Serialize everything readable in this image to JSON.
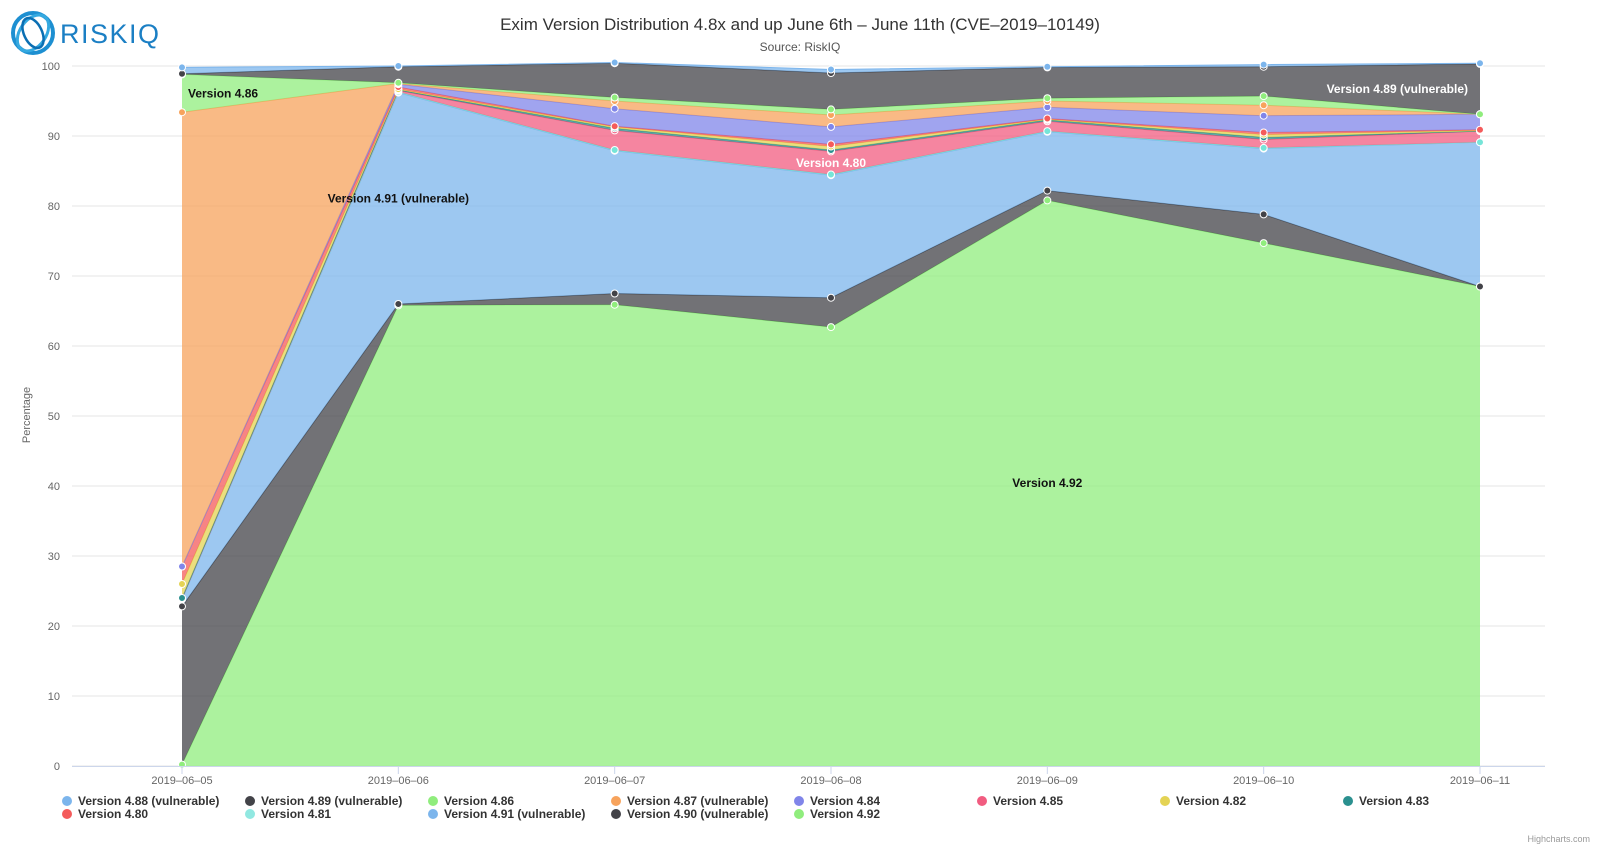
{
  "logo": {
    "text": "RISKIQ"
  },
  "chart_data": {
    "type": "area",
    "stacking": "normal",
    "title": "Exim Version Distribution 4.8x and up June 6th – June 11th (CVE–2019–10149)",
    "subtitle": "Source: RiskIQ",
    "ylabel": "Percentage",
    "xlabel": "",
    "ylim": [
      0,
      100
    ],
    "yticks": [
      0,
      10,
      20,
      30,
      40,
      50,
      60,
      70,
      80,
      90,
      100
    ],
    "grid": true,
    "legend_position": "bottom",
    "categories": [
      "2019–06–05",
      "2019–06–06",
      "2019–06–07",
      "2019–06–08",
      "2019–06–09",
      "2019–06–10",
      "2019–06–11"
    ],
    "series": [
      {
        "name": "Version 4.92",
        "color": "#90ed7d",
        "values": [
          0.2,
          65.8,
          65.9,
          62.7,
          80.8,
          74.7,
          68.5
        ]
      },
      {
        "name": "Version 4.90 (vulnerable)",
        "color": "#434348",
        "values": [
          22.6,
          0.2,
          1.6,
          4.2,
          1.4,
          4.1,
          0.0
        ]
      },
      {
        "name": "Version 4.91 (vulnerable)",
        "color": "#7cb5ec",
        "values": [
          1.0,
          30.2,
          20.4,
          17.5,
          8.4,
          9.4,
          20.6
        ]
      },
      {
        "name": "Version 4.81",
        "color": "#76e5d8",
        "values": [
          0.1,
          0.1,
          0.1,
          0.1,
          0.1,
          0.1,
          0.0
        ]
      },
      {
        "name": "Version 4.80",
        "color": "#f15c80",
        "values": [
          0.0,
          0.2,
          2.8,
          3.3,
          1.4,
          1.2,
          1.6
        ]
      },
      {
        "name": "Version 4.83",
        "color": "#2b908f",
        "values": [
          0.1,
          0.1,
          0.3,
          0.2,
          0.2,
          0.3,
          0.0
        ]
      },
      {
        "name": "Version 4.82",
        "color": "#e4d354",
        "values": [
          2.0,
          0.1,
          0.2,
          0.5,
          0.1,
          0.4,
          0.1
        ]
      },
      {
        "name": "Version 4.85",
        "color": "#f45b5b",
        "values": [
          2.5,
          0.3,
          0.1,
          0.3,
          0.1,
          0.3,
          0.1
        ]
      },
      {
        "name": "Version 4.84",
        "color": "#8085e9",
        "values": [
          0.0,
          0.4,
          2.5,
          2.5,
          1.6,
          2.4,
          2.2
        ]
      },
      {
        "name": "Version 4.87 (vulnerable)",
        "color": "#f7a35c",
        "values": [
          64.9,
          0.1,
          1.1,
          1.7,
          0.9,
          1.5,
          0.0
        ]
      },
      {
        "name": "Version 4.86",
        "color": "#90ed7d",
        "values": [
          5.4,
          0.1,
          0.5,
          0.8,
          0.4,
          1.3,
          0.0
        ]
      },
      {
        "name": "Version 4.89 (vulnerable)",
        "color": "#434348",
        "values": [
          0.1,
          2.3,
          4.9,
          5.2,
          4.4,
          4.2,
          7.2
        ]
      },
      {
        "name": "Version 4.88 (vulnerable)",
        "color": "#7cb5ec",
        "values": [
          0.9,
          0.1,
          0.1,
          0.5,
          0.1,
          0.3,
          0.1
        ]
      }
    ],
    "annotations": [
      {
        "text": "Version 4.86",
        "series": "Version 4.86",
        "point": 0,
        "align": "left",
        "color": "#111111"
      },
      {
        "text": "Version 4.91 (vulnerable)",
        "series": "Version 4.91 (vulnerable)",
        "point": 1,
        "align": "middle",
        "color": "#111111"
      },
      {
        "text": "Version 4.80",
        "series": "Version 4.80",
        "point": 3,
        "align": "middle",
        "color": "#ffffff"
      },
      {
        "text": "Version 4.89 (vulnerable)",
        "series": "Version 4.89 (vulnerable)",
        "point": 6,
        "align": "right",
        "color": "#ffffff"
      },
      {
        "text": "Version 4.92",
        "series": "Version 4.92",
        "point": 4,
        "align": "middle",
        "color": "#111111"
      }
    ],
    "legend": [
      {
        "name": "Version 4.88 (vulnerable)",
        "color": "#7cb5ec"
      },
      {
        "name": "Version 4.89 (vulnerable)",
        "color": "#434348"
      },
      {
        "name": "Version 4.86",
        "color": "#90ed7d"
      },
      {
        "name": "Version 4.87 (vulnerable)",
        "color": "#f7a35c"
      },
      {
        "name": "Version 4.84",
        "color": "#8085e9"
      },
      {
        "name": "Version 4.85",
        "color": "#f15c80"
      },
      {
        "name": "Version 4.82",
        "color": "#e4d354"
      },
      {
        "name": "Version 4.83",
        "color": "#2b908f"
      },
      {
        "name": "Version 4.80",
        "color": "#f45b5b"
      },
      {
        "name": "Version 4.81",
        "color": "#91e8e1"
      },
      {
        "name": "Version 4.91 (vulnerable)",
        "color": "#7cb5ec"
      },
      {
        "name": "Version 4.90 (vulnerable)",
        "color": "#434348"
      },
      {
        "name": "Version 4.92",
        "color": "#90ed7d"
      }
    ],
    "credits": "Highcharts.com"
  }
}
